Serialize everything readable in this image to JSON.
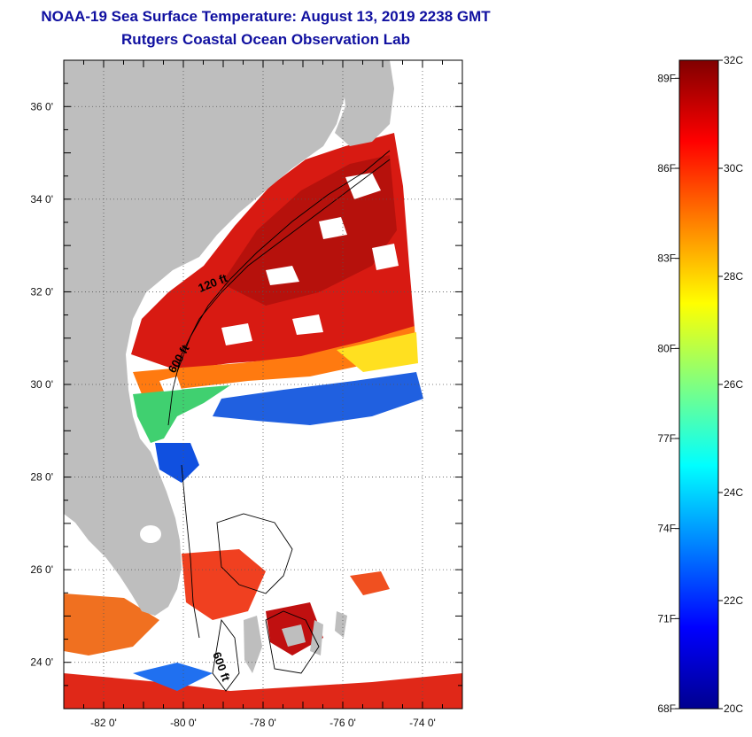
{
  "title": "NOAA-19 Sea Surface Temperature:  August 13, 2019 2238 GMT",
  "subtitle": "Rutgers Coastal Ocean Observation Lab",
  "map": {
    "lon_range": [
      -83,
      -73
    ],
    "lat_range": [
      23,
      37
    ],
    "lat_ticks": [
      {
        "value": 36,
        "label": "36 0'"
      },
      {
        "value": 34,
        "label": "34 0'"
      },
      {
        "value": 32,
        "label": "32 0'"
      },
      {
        "value": 30,
        "label": "30 0'"
      },
      {
        "value": 28,
        "label": "28 0'"
      },
      {
        "value": 26,
        "label": "26 0'"
      },
      {
        "value": 24,
        "label": "24 0'"
      }
    ],
    "lon_ticks": [
      {
        "value": -82,
        "label": "-82 0'"
      },
      {
        "value": -80,
        "label": "-80 0'"
      },
      {
        "value": -78,
        "label": "-78 0'"
      },
      {
        "value": -76,
        "label": "-76 0'"
      },
      {
        "value": -74,
        "label": "-74 0'"
      }
    ],
    "contour_labels": [
      {
        "text": "120 ft"
      },
      {
        "text": "600 ft"
      },
      {
        "text": "600 ft"
      }
    ],
    "land_color": "#bebebe",
    "grid": true
  },
  "colorbar": {
    "min_c": 20,
    "max_c": 32,
    "celsius_labels": [
      {
        "value": 32,
        "label": "32C"
      },
      {
        "value": 30,
        "label": "30C"
      },
      {
        "value": 28,
        "label": "28C"
      },
      {
        "value": 26,
        "label": "26C"
      },
      {
        "value": 24,
        "label": "24C"
      },
      {
        "value": 22,
        "label": "22C"
      },
      {
        "value": 20,
        "label": "20C"
      }
    ],
    "fahrenheit_labels": [
      {
        "value": 89,
        "label": "89F"
      },
      {
        "value": 86,
        "label": "86F"
      },
      {
        "value": 83,
        "label": "83F"
      },
      {
        "value": 80,
        "label": "80F"
      },
      {
        "value": 77,
        "label": "77F"
      },
      {
        "value": 74,
        "label": "74F"
      },
      {
        "value": 71,
        "label": "71F"
      },
      {
        "value": 68,
        "label": "68F"
      }
    ],
    "colors": [
      "#00008f",
      "#0000ff",
      "#0080ff",
      "#00ffff",
      "#80ff80",
      "#ffff00",
      "#ff8000",
      "#ff0000",
      "#800000"
    ]
  }
}
